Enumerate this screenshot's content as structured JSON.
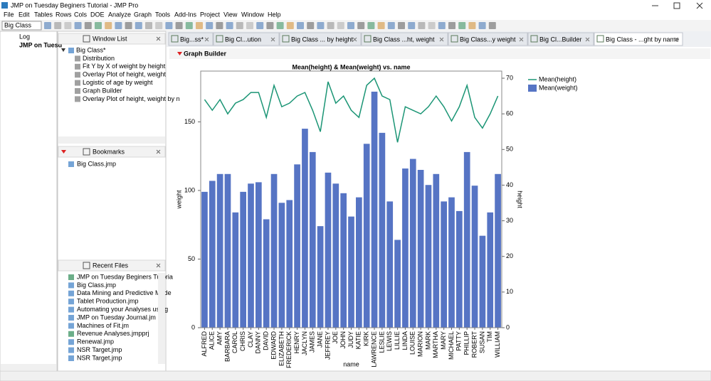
{
  "window": {
    "title": "JMP on Tuesday Beginers Tutorial - JMP Pro"
  },
  "menu": [
    "File",
    "Edit",
    "Tables",
    "Rows",
    "Cols",
    "DOE",
    "Analyze",
    "Graph",
    "Tools",
    "Add-Ins",
    "Project",
    "View",
    "Window",
    "Help"
  ],
  "toolbar": {
    "table_select": "Big Class"
  },
  "nav": [
    "Log",
    "JMP on Tuesd"
  ],
  "window_list": {
    "title": "Window List",
    "items": [
      "Big Class*",
      "Distribution",
      "Fit Y by X of weight by height",
      "Overlay Plot of height, weight",
      "Logistic of age by weight",
      "Graph Builder",
      "Overlay Plot of height, weight by n"
    ]
  },
  "bookmarks": {
    "title": "Bookmarks",
    "items": [
      "Big Class.jmp"
    ]
  },
  "recent_files": {
    "title": "Recent Files",
    "items": [
      "JMP on Tuesday Beginers Tutoria",
      "Big Class.jmp",
      "Data Mining and Predictive Mode",
      "Tablet Production.jmp",
      "Automating your Analyses using",
      "JMP on Tuesday Journal.jm",
      "Machines of Fit.jm",
      "Revenue Analyses.jmpprj",
      "Renewal.jmp",
      "NSR Target.jmp",
      "NSR Target.jmp"
    ]
  },
  "tabs": [
    "Big...ss*",
    "Big Cl...ution",
    "Big Class ... by height",
    "Big Class ...ht, weight",
    "Big Class...y weight",
    "Big Cl...Builder",
    "Big Class - ...ght by name"
  ],
  "report": {
    "title": "Graph Builder"
  },
  "chart_data": {
    "type": "bar",
    "title": "Mean(height) & Mean(weight) vs. name",
    "x_label": "name",
    "y_label": "weight",
    "y2_label": "height",
    "categories": [
      "ALFRED",
      "ALICE",
      "AMY",
      "BARBARA",
      "CAROL",
      "CHRIS",
      "CLAY",
      "DANNY",
      "DAVID",
      "EDWARD",
      "ELIZABETH",
      "FREDERICK",
      "HENRY",
      "JACLYN",
      "JAMES",
      "JANE",
      "JEFFREY",
      "JOE",
      "JOHN",
      "JUDY",
      "KATIE",
      "KIRK",
      "LAWRENCE",
      "LESLIE",
      "LEWIS",
      "LILLIE",
      "LINDA",
      "LOUISE",
      "MARION",
      "MARK",
      "MARTHA",
      "MARY",
      "MICHAEL",
      "PATTY",
      "PHILLIP",
      "ROBERT",
      "SUSAN",
      "TIM",
      "WILLIAM"
    ],
    "series": [
      {
        "name": "Mean(height)",
        "type": "line",
        "axis": "y2",
        "color": "#1b9575",
        "values": [
          64,
          61,
          64,
          60,
          63,
          64,
          66,
          66,
          59,
          68,
          62,
          63,
          65,
          66,
          61,
          55,
          69,
          63,
          65,
          61,
          59,
          68,
          70,
          65,
          64,
          52,
          62,
          61,
          60,
          62,
          65,
          62,
          58,
          62,
          68,
          59,
          56,
          60,
          65
        ]
      },
      {
        "name": "Mean(weight)",
        "type": "bar",
        "color": "#5674c4",
        "values": [
          99,
          107,
          112,
          112,
          84,
          99,
          105,
          106,
          79,
          112,
          91,
          93,
          119,
          145,
          128,
          74,
          113,
          105,
          98,
          81,
          95,
          134,
          172,
          142,
          92,
          64,
          116,
          123,
          115,
          104,
          112,
          92,
          95,
          85,
          128,
          103.5,
          67,
          84,
          112
        ]
      }
    ],
    "ylim": [
      0,
      187
    ],
    "yticks": [
      0,
      50,
      100,
      150
    ],
    "y2lim": [
      0,
      72
    ],
    "y2ticks": [
      0,
      10,
      20,
      30,
      40,
      50,
      60,
      70
    ],
    "legend": "top-right"
  }
}
